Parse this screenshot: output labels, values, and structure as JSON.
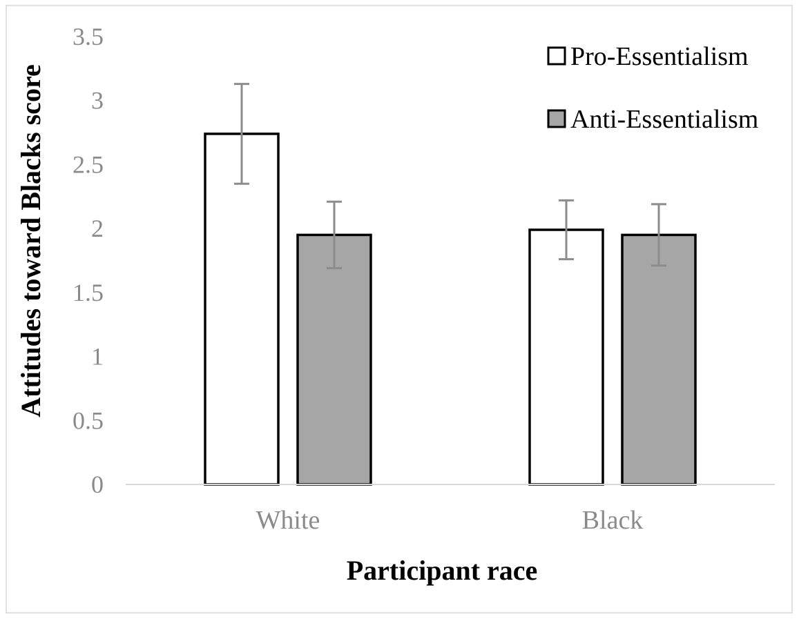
{
  "chart_data": {
    "type": "bar",
    "categories": [
      "White",
      "Black"
    ],
    "series": [
      {
        "name": "Pro-Essentialism",
        "values": [
          2.74,
          1.99
        ],
        "error": [
          0.39,
          0.23
        ],
        "color": "#ffffff"
      },
      {
        "name": "Anti-Essentialism",
        "values": [
          1.95,
          1.95
        ],
        "error": [
          0.26,
          0.24
        ],
        "color": "#a6a6a6"
      }
    ],
    "title": "",
    "xlabel": "Participant race",
    "ylabel": "Attitudes toward Blacks score",
    "ylim": [
      0,
      3.5
    ],
    "yticks": [
      "0",
      "0.5",
      "1",
      "1.5",
      "2",
      "2.5",
      "3",
      "3.5"
    ],
    "grid": false,
    "legend": "top-right",
    "error_bar_color": "#8c8c8c",
    "bar_edge_color": "#000000"
  }
}
